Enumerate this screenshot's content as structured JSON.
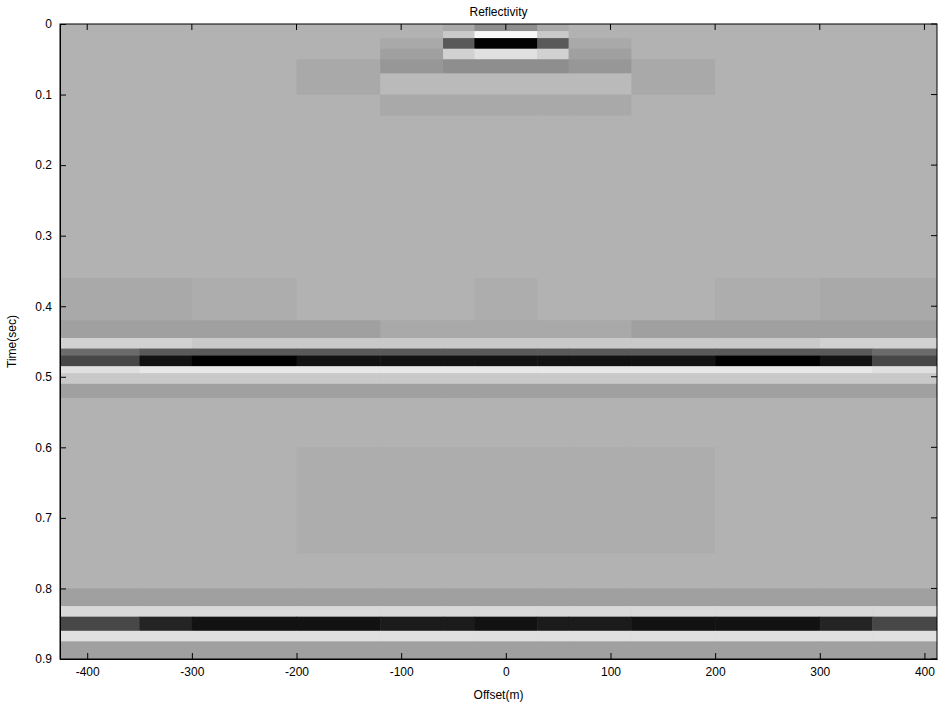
{
  "chart_data": {
    "type": "heatmap",
    "title": "Reflectivity",
    "x_label": "Offset(m)",
    "y_label": "Time(sec)",
    "xlim": [
      -426,
      412
    ],
    "ylim": [
      0,
      0.9
    ],
    "xticks": [
      -400,
      -300,
      -200,
      -100,
      0,
      100,
      200,
      300,
      400
    ],
    "yticks": [
      0,
      0.1,
      0.2,
      0.3,
      0.4,
      0.5,
      0.6,
      0.7,
      0.8,
      0.9
    ],
    "x_edges": [
      -426,
      -350,
      -300,
      -200,
      -120,
      -60,
      -30,
      30,
      60,
      120,
      200,
      300,
      350,
      412
    ],
    "y_edges": [
      0,
      0.01,
      0.02,
      0.035,
      0.05,
      0.07,
      0.1,
      0.13,
      0.36,
      0.42,
      0.445,
      0.46,
      0.47,
      0.485,
      0.495,
      0.51,
      0.53,
      0.6,
      0.75,
      0.8,
      0.825,
      0.84,
      0.86,
      0.875,
      0.9
    ],
    "value_range": [
      -1,
      1
    ],
    "cells": [
      [
        0,
        0,
        0,
        0,
        0,
        0.05,
        0.2,
        0.05,
        0,
        0,
        0,
        0,
        0
      ],
      [
        0,
        0,
        0,
        0,
        0,
        -0.3,
        -0.9,
        -0.3,
        0,
        0,
        0,
        0,
        0
      ],
      [
        0,
        0,
        0,
        0,
        0.05,
        0.5,
        1,
        0.5,
        0.05,
        0,
        0,
        0,
        0
      ],
      [
        0,
        0,
        0,
        0,
        0.1,
        -0.4,
        -0.6,
        -0.4,
        0.1,
        0,
        0,
        0,
        0
      ],
      [
        0,
        0,
        0,
        0.05,
        0.15,
        0.2,
        0.2,
        0.2,
        0.15,
        0.05,
        0,
        0,
        0
      ],
      [
        0,
        0,
        0,
        0.05,
        -0.1,
        -0.1,
        -0.1,
        -0.1,
        -0.1,
        0.05,
        0,
        0,
        0
      ],
      [
        0,
        0,
        0,
        0,
        0.05,
        0.05,
        0.05,
        0.05,
        0.05,
        0,
        0,
        0,
        0
      ],
      [
        0,
        0,
        0,
        0,
        0,
        0,
        0,
        0,
        0,
        0,
        0,
        0,
        0
      ],
      [
        0.05,
        0.05,
        0.03,
        0,
        0,
        0,
        0.03,
        0,
        0,
        0,
        0.03,
        0.05,
        0.05
      ],
      [
        0.1,
        0.1,
        0.1,
        0.1,
        0.05,
        0.05,
        0.05,
        0.05,
        0.05,
        0.1,
        0.1,
        0.1,
        0.1
      ],
      [
        -0.4,
        -0.4,
        -0.3,
        -0.3,
        -0.3,
        -0.3,
        -0.3,
        -0.3,
        -0.3,
        -0.3,
        -0.3,
        -0.4,
        -0.4
      ],
      [
        0.4,
        0.5,
        0.5,
        0.5,
        0.5,
        0.5,
        0.5,
        0.5,
        0.5,
        0.5,
        0.5,
        0.5,
        0.4
      ],
      [
        0.6,
        0.9,
        1,
        0.9,
        0.9,
        0.9,
        0.9,
        0.9,
        0.9,
        0.9,
        1,
        0.9,
        0.6
      ],
      [
        -0.6,
        -0.7,
        -0.7,
        -0.7,
        -0.7,
        -0.7,
        -0.7,
        -0.7,
        -0.7,
        -0.7,
        -0.7,
        -0.7,
        -0.6
      ],
      [
        -0.3,
        -0.3,
        -0.3,
        -0.3,
        -0.3,
        -0.3,
        -0.3,
        -0.3,
        -0.3,
        -0.3,
        -0.3,
        -0.3,
        -0.3
      ],
      [
        0.1,
        0.1,
        0.1,
        0.1,
        0.1,
        0.1,
        0.1,
        0.1,
        0.1,
        0.1,
        0.1,
        0.1,
        0.1
      ],
      [
        0,
        0,
        0,
        0,
        0,
        0,
        0,
        0,
        0,
        0,
        0,
        0,
        0
      ],
      [
        0,
        0,
        0,
        0.03,
        0.03,
        0.03,
        0.03,
        0.03,
        0.03,
        0.03,
        0,
        0,
        0
      ],
      [
        0,
        0,
        0,
        0,
        0,
        0,
        0,
        0,
        0,
        0,
        0,
        0,
        0
      ],
      [
        0.1,
        0.1,
        0.1,
        0.1,
        0.1,
        0.1,
        0.1,
        0.1,
        0.1,
        0.1,
        0.1,
        0.1,
        0.1
      ],
      [
        -0.5,
        -0.5,
        -0.5,
        -0.5,
        -0.5,
        -0.5,
        -0.5,
        -0.5,
        -0.5,
        -0.5,
        -0.5,
        -0.5,
        -0.5
      ],
      [
        0.6,
        0.8,
        0.9,
        0.9,
        0.85,
        0.85,
        0.9,
        0.85,
        0.85,
        0.9,
        0.9,
        0.8,
        0.6
      ],
      [
        -0.6,
        -0.6,
        -0.6,
        -0.6,
        -0.6,
        -0.6,
        -0.6,
        -0.6,
        -0.6,
        -0.6,
        -0.6,
        -0.6,
        -0.6
      ],
      [
        0.1,
        0.1,
        0.1,
        0.1,
        0.1,
        0.1,
        0.1,
        0.1,
        0.1,
        0.1,
        0.1,
        0.1,
        0.1
      ]
    ]
  }
}
